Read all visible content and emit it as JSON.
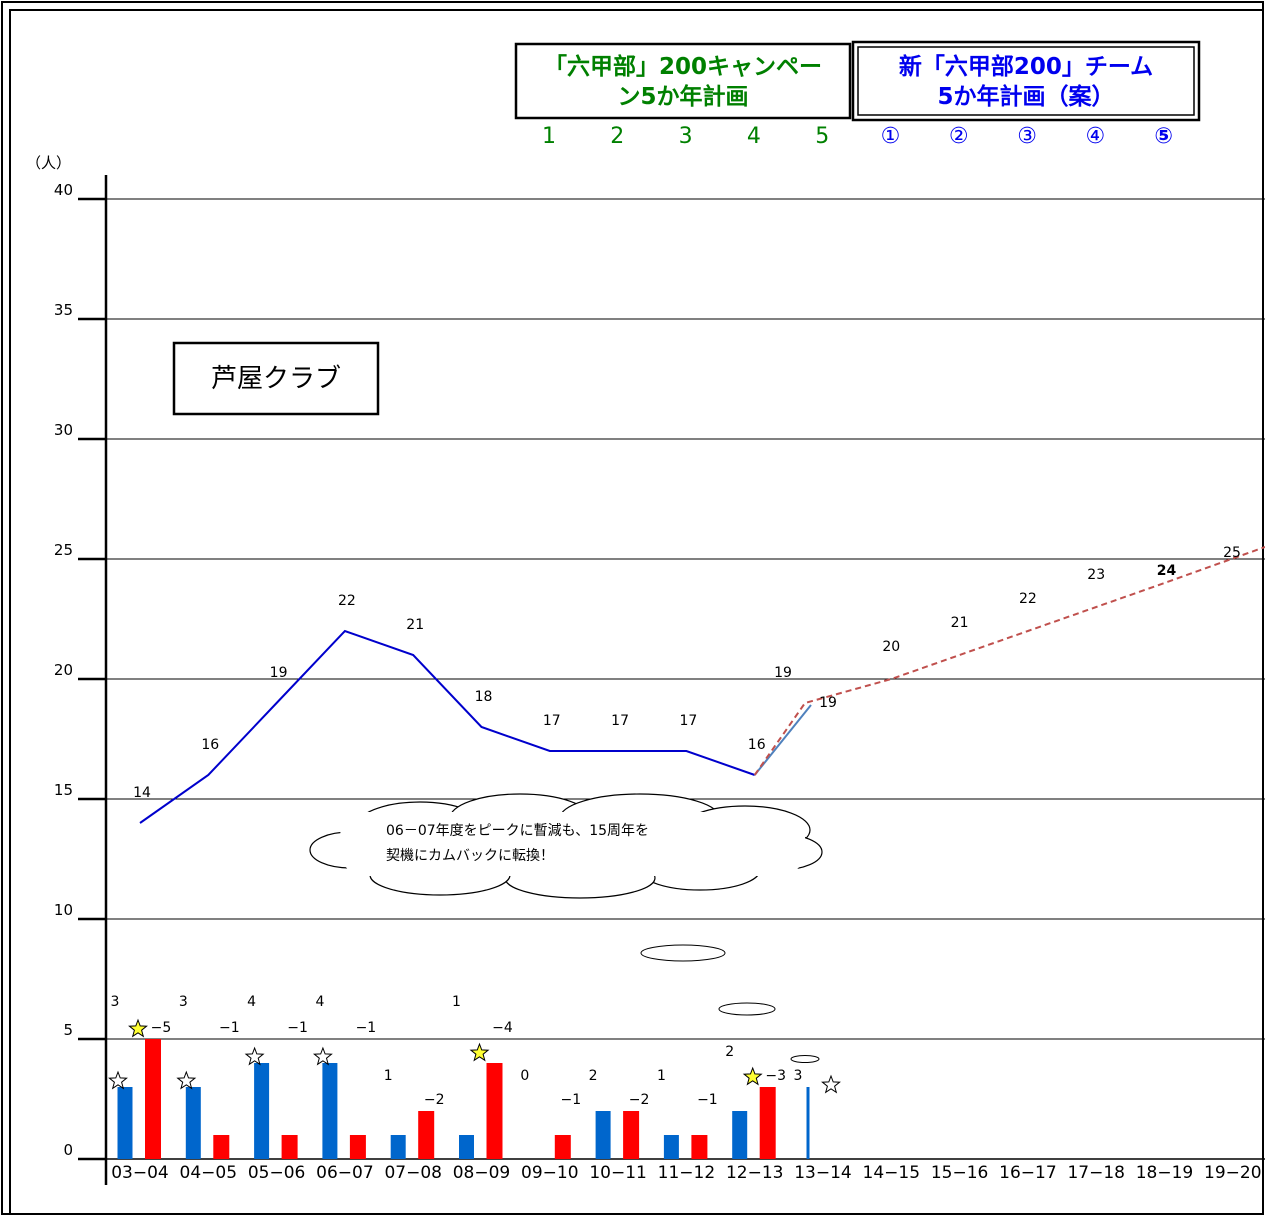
{
  "header": {
    "old_plan_line1": "「六甲部」200キャンペー",
    "old_plan_line2": "ン5か年計画",
    "new_plan_line1": "新「六甲部200」チーム",
    "new_plan_line2": "5か年計画（案）",
    "years": [
      "1",
      "2",
      "3",
      "4",
      "5",
      "①",
      "②",
      "③",
      "④",
      "⑤"
    ]
  },
  "club_label": "芦屋クラブ",
  "callout": {
    "line1": "06－07年度をピークに暫減も、15周年を",
    "line2": "契機にカムバックに転換！"
  },
  "colors": {
    "actual_line": "#0000cc",
    "plan_line": "#c0504d",
    "bar_blue": "#0066cc",
    "bar_red": "#ff0000",
    "star_yellow": "#ffff33",
    "green_text": "#008000",
    "blue_text": "#0000ee"
  },
  "chart_data": {
    "type": "line",
    "ylabel": "（人）",
    "ylim": [
      0,
      40
    ],
    "yticks": [
      "0",
      "5",
      "10",
      "15",
      "20",
      "25",
      "30",
      "35",
      "40"
    ],
    "grid": true,
    "categories": [
      "03−04",
      "04−05",
      "05−06",
      "06−07",
      "07−08",
      "08−09",
      "09−10",
      "10−11",
      "11−12",
      "12−13",
      "13−14",
      "14−15",
      "15−16",
      "16−17",
      "17−18",
      "18−19",
      "19−20"
    ],
    "series": [
      {
        "kind": "line-actual",
        "x": [
          "03−04",
          "04−05",
          "05−06",
          "06−07",
          "07−08",
          "08−09",
          "09−10",
          "10−11",
          "11−12",
          "12−13",
          "13−14"
        ],
        "values": [
          14,
          16,
          19,
          22,
          21,
          18,
          17,
          17,
          17,
          16,
          19
        ],
        "labels": [
          "14",
          "16",
          "19",
          "22",
          "21",
          "18",
          "17",
          "17",
          "17",
          "16",
          "19"
        ]
      },
      {
        "kind": "line-plan-dashed",
        "x": [
          "12−13",
          "13−14",
          "14−15",
          "15−16",
          "16−17",
          "17−18",
          "18−19",
          "19−20"
        ],
        "values": [
          16,
          19,
          20,
          21,
          22,
          23,
          24,
          25.5
        ],
        "labels": [
          "19",
          "20",
          "21",
          "22",
          "23",
          "24",
          "25"
        ]
      },
      {
        "kind": "bar-joined",
        "x": [
          "03−04",
          "04−05",
          "05−06",
          "06−07",
          "07−08",
          "08−09",
          "09−10",
          "10−11",
          "11−12",
          "12−13",
          "13−14"
        ],
        "values": [
          3,
          3,
          4,
          4,
          1,
          1,
          0,
          2,
          1,
          2,
          3
        ],
        "labels": [
          "3",
          "3",
          "4",
          "4",
          "1",
          "1",
          "0",
          "2",
          "1",
          "2",
          "3"
        ]
      },
      {
        "kind": "bar-left",
        "x": [
          "03−04",
          "04−05",
          "05−06",
          "06−07",
          "07−08",
          "08−09",
          "09−10",
          "10−11",
          "11−12",
          "12−13"
        ],
        "values": [
          5,
          1,
          1,
          1,
          2,
          4,
          1,
          2,
          1,
          3
        ],
        "labels": [
          "−5",
          "−1",
          "−1",
          "−1",
          "−2",
          "−4",
          "−1",
          "−2",
          "−1",
          "−3"
        ]
      }
    ],
    "stars": [
      {
        "x": "03−04",
        "bar": "blue",
        "fill": "white"
      },
      {
        "x": "03−04",
        "bar": "red",
        "fill": "yellow"
      },
      {
        "x": "04−05",
        "bar": "blue",
        "fill": "white"
      },
      {
        "x": "05−06",
        "bar": "blue",
        "fill": "white"
      },
      {
        "x": "06−07",
        "bar": "blue",
        "fill": "white"
      },
      {
        "x": "08−09",
        "bar": "red",
        "fill": "yellow"
      },
      {
        "x": "12−13",
        "bar": "red",
        "fill": "yellow"
      },
      {
        "x": "13−14",
        "bar": "blue",
        "fill": "white"
      }
    ]
  }
}
